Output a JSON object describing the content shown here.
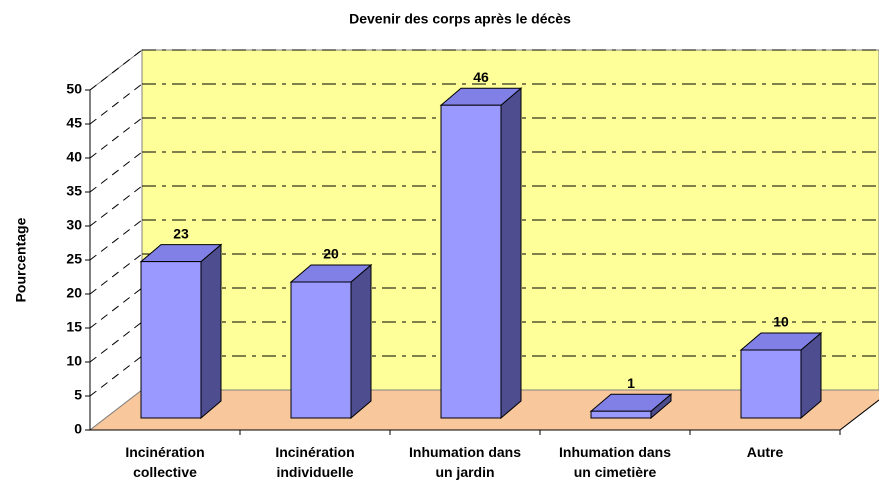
{
  "chart_data": {
    "type": "bar3d",
    "title": "Devenir des corps après le décès",
    "ylabel": "Pourcentage",
    "categories": [
      "Incinération collective",
      "Incinération individuelle",
      "Inhumation dans un jardin",
      "Inhumation dans un cimetière",
      "Autre"
    ],
    "values": [
      23,
      20,
      46,
      1,
      10
    ],
    "color": "#9999ff",
    "ylim": [
      0,
      50
    ],
    "yticks": [
      0,
      5,
      10,
      15,
      20,
      25,
      30,
      35,
      40,
      45,
      50
    ],
    "grid": true,
    "wall_color": "#ffff99",
    "floor_color": "#f8c89c"
  }
}
